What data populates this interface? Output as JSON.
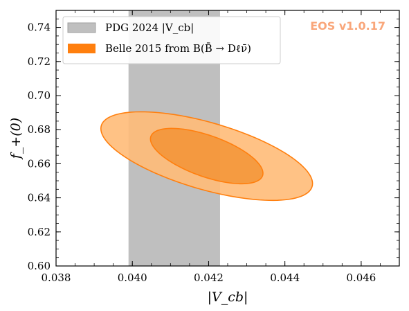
{
  "chart_data": {
    "type": "area",
    "xlabel": "|V_cb|",
    "ylabel": "f_+(0)",
    "xlim": [
      0.038,
      0.047
    ],
    "ylim": [
      0.6,
      0.75
    ],
    "xticks": [
      "0.038",
      "0.040",
      "0.042",
      "0.044",
      "0.046"
    ],
    "yticks": [
      "0.60",
      "0.62",
      "0.64",
      "0.66",
      "0.68",
      "0.70",
      "0.72",
      "0.74"
    ],
    "legend_position": "top-left",
    "legend": [
      {
        "label": "PDG 2024 |V_cb|",
        "color": "#bfbfbf"
      },
      {
        "label": "Belle 2015 from B(B̄ → Dℓν̄)",
        "color": "#ff7f0e"
      }
    ],
    "band": {
      "name": "PDG 2024 |V_cb|",
      "x_min": 0.0399,
      "x_max": 0.0423,
      "color": "#bfbfbf"
    },
    "contours": [
      {
        "level": "outer",
        "center_x": 0.04195,
        "center_y": 0.6645,
        "x_extent_min": 0.0393,
        "x_extent_max": 0.04485,
        "y_extent_min": 0.6395,
        "y_extent_max": 0.6915,
        "fill": "#ffbb78",
        "edge": "#ff7f0e"
      },
      {
        "level": "inner",
        "center_x": 0.04195,
        "center_y": 0.6645,
        "x_extent_min": 0.0406,
        "x_extent_max": 0.04355,
        "y_extent_min": 0.65,
        "y_extent_max": 0.6825,
        "fill": "#f28e2b",
        "edge": "#ff7f0e"
      }
    ],
    "watermark": {
      "text": "EOS v1.0.17",
      "color": "#f9a67a"
    },
    "grid": false
  }
}
